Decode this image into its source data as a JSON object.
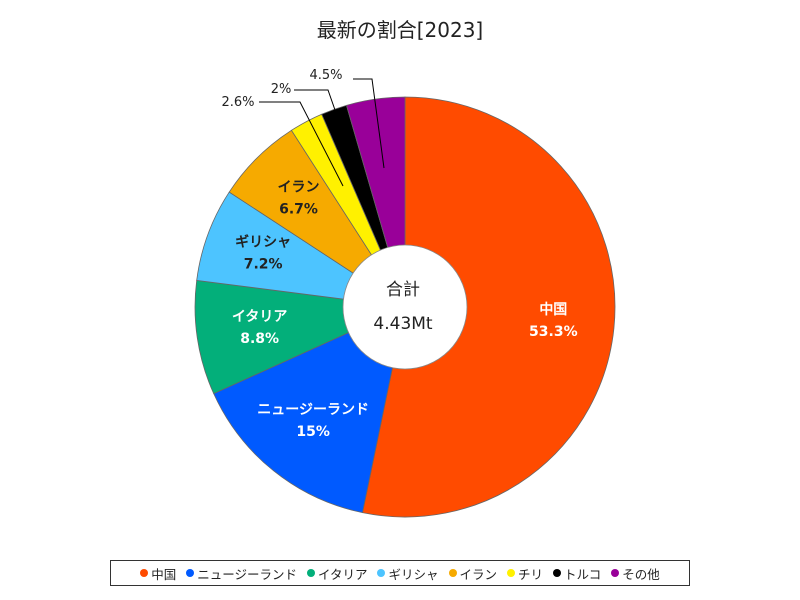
{
  "chart_data": {
    "type": "pie",
    "title": "最新の割合[2023]",
    "center_label": "合計",
    "center_value": "4.43Mt",
    "slices": [
      {
        "name": "中国",
        "value": 53.3,
        "label": "53.3%",
        "color": "#ff4b00"
      },
      {
        "name": "ニュージーランド",
        "value": 15,
        "label": "15%",
        "color": "#005aff"
      },
      {
        "name": "イタリア",
        "value": 8.8,
        "label": "8.8%",
        "color": "#03af7a"
      },
      {
        "name": "ギリシャ",
        "value": 7.2,
        "label": "7.2%",
        "color": "#4dc4ff"
      },
      {
        "name": "イラン",
        "value": 6.7,
        "label": "6.7%",
        "color": "#f6aa00"
      },
      {
        "name": "チリ",
        "value": 2.6,
        "label": "2.6%",
        "color": "#fff100"
      },
      {
        "name": "トルコ",
        "value": 2,
        "label": "2%",
        "color": "#000000"
      },
      {
        "name": "その他",
        "value": 4.5,
        "label": "4.5%",
        "color": "#990099"
      }
    ]
  }
}
